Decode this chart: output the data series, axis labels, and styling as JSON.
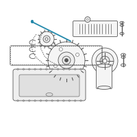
{
  "bg_color": "#ffffff",
  "line_color": "#555555",
  "highlight_color": "#2288aa",
  "fig_width": 2.0,
  "fig_height": 2.0,
  "dpi": 100,
  "lw": 0.6
}
